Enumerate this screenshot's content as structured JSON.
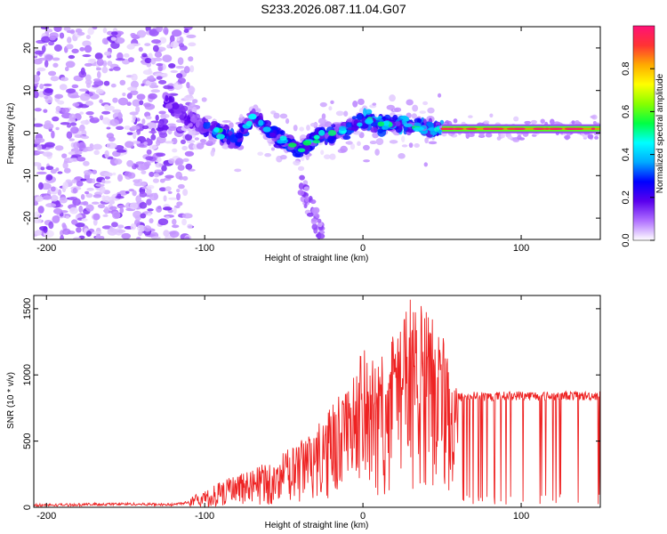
{
  "title": "S233.2026.087.11.04.G07",
  "colors": {
    "snr_line": "#ee2222",
    "axis": "#000000",
    "background": "#ffffff"
  },
  "chart_data": [
    {
      "type": "heatmap",
      "name": "spectrogram",
      "xlabel": "Height of straight line (km)",
      "ylabel": "Frequency (Hz)",
      "xlim": [
        -208,
        150
      ],
      "ylim": [
        -25,
        25
      ],
      "xticks": [
        -200,
        -100,
        0,
        100
      ],
      "xtick_labels": [
        "-200",
        "-100",
        "0",
        "100"
      ],
      "yticks": [
        20,
        10,
        0,
        -10,
        -20
      ],
      "ytick_labels": [
        "20",
        "10",
        "0",
        "-10",
        "-20"
      ],
      "colorbar": {
        "label": "Normalized spectral amplitude",
        "range": [
          0,
          1
        ],
        "ticks": [
          "0.0",
          "0.2",
          "0.4",
          "0.6",
          "0.8"
        ],
        "stops": [
          "#ffffff",
          "#b070ff",
          "#5a00ee",
          "#0000ff",
          "#00aaff",
          "#00ffff",
          "#00ff44",
          "#88ff00",
          "#ffff00",
          "#ffaa00",
          "#ff3333",
          "#ff1177"
        ]
      },
      "dominant_band": {
        "x_range": [
          50,
          150
        ],
        "frequency": 1,
        "amplitude": 0.85
      },
      "ridge": [
        {
          "x": -125,
          "f": 8
        },
        {
          "x": -110,
          "f": 3
        },
        {
          "x": -95,
          "f": 1
        },
        {
          "x": -80,
          "f": -2
        },
        {
          "x": -70,
          "f": 4
        },
        {
          "x": -60,
          "f": 1
        },
        {
          "x": -50,
          "f": -2
        },
        {
          "x": -40,
          "f": -4
        },
        {
          "x": -30,
          "f": -1
        },
        {
          "x": -15,
          "f": 0
        },
        {
          "x": 0,
          "f": 3
        },
        {
          "x": 15,
          "f": 2
        },
        {
          "x": 30,
          "f": 2
        },
        {
          "x": 45,
          "f": 1
        }
      ]
    },
    {
      "type": "line",
      "name": "snr",
      "xlabel": "Height of straight line (km)",
      "ylabel": "SNR (10 * v/v)",
      "xlim": [
        -208,
        150
      ],
      "ylim": [
        0,
        1600
      ],
      "xticks": [
        -200,
        -100,
        0,
        100
      ],
      "xtick_labels": [
        "-200",
        "-100",
        "0",
        "100"
      ],
      "yticks": [
        0,
        500,
        1000,
        1500
      ],
      "ytick_labels": [
        "0",
        "500",
        "1000",
        "1500"
      ],
      "series": [
        {
          "name": "SNR",
          "x": [
            -208,
            -180,
            -150,
            -120,
            -100,
            -90,
            -80,
            -70,
            -60,
            -50,
            -40,
            -30,
            -20,
            -10,
            0,
            10,
            20,
            30,
            40,
            50,
            55,
            60,
            70,
            80,
            90,
            100,
            110,
            120,
            130,
            140,
            150
          ],
          "y": [
            15,
            20,
            25,
            20,
            60,
            120,
            150,
            170,
            200,
            250,
            320,
            450,
            600,
            700,
            750,
            850,
            950,
            1050,
            1100,
            950,
            850,
            830,
            840,
            835,
            840,
            845,
            840,
            840,
            845,
            840,
            845
          ],
          "peak_max": [
            20,
            30,
            35,
            40,
            120,
            200,
            250,
            280,
            350,
            420,
            500,
            600,
            800,
            900,
            1200,
            1100,
            1350,
            1600,
            1500,
            1480,
            1000,
            900,
            880,
            880,
            880,
            880,
            880,
            880,
            880,
            900,
            880
          ],
          "dropouts_after_x": 60,
          "dropout_min": 20
        }
      ]
    }
  ]
}
